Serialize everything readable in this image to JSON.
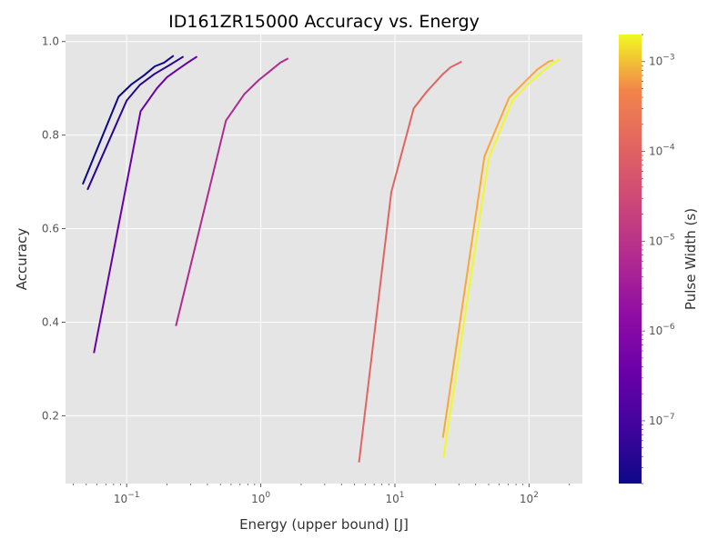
{
  "chart_data": {
    "type": "line",
    "title": "ID161ZR15000 Accuracy vs. Energy",
    "xlabel": "Energy (upper bound) [J]",
    "ylabel": "Accuracy",
    "x_scale": "log",
    "xlim": [
      0.035,
      250
    ],
    "ylim": [
      0.055,
      1.015
    ],
    "x_ticks": [
      {
        "value": 0.1,
        "base": "10",
        "exp": "−1"
      },
      {
        "value": 1,
        "base": "10",
        "exp": "0"
      },
      {
        "value": 10,
        "base": "10",
        "exp": "1"
      },
      {
        "value": 100,
        "base": "10",
        "exp": "2"
      }
    ],
    "y_ticks": [
      {
        "value": 0.2,
        "label": "0.2"
      },
      {
        "value": 0.4,
        "label": "0.4"
      },
      {
        "value": 0.6,
        "label": "0.6"
      },
      {
        "value": 0.8,
        "label": "0.8"
      },
      {
        "value": 1.0,
        "label": "1.0"
      }
    ],
    "grid": true,
    "colorbar": {
      "label": "Pulse Width (s)",
      "scale": "log",
      "colormap": "plasma",
      "range": [
        2e-08,
        0.002
      ],
      "ticks": [
        {
          "value": 1e-07,
          "base": "10",
          "exp": "−7"
        },
        {
          "value": 1e-06,
          "base": "10",
          "exp": "−6"
        },
        {
          "value": 1e-05,
          "base": "10",
          "exp": "−5"
        },
        {
          "value": 0.0001,
          "base": "10",
          "exp": "−4"
        },
        {
          "value": 0.001,
          "base": "10",
          "exp": "−3"
        }
      ]
    },
    "series": [
      {
        "color": "#0d0887",
        "x": [
          0.047,
          0.087,
          0.108,
          0.135,
          0.162,
          0.19,
          0.224
        ],
        "y": [
          0.695,
          0.882,
          0.908,
          0.928,
          0.947,
          0.955,
          0.97
        ]
      },
      {
        "color": "#2a0593",
        "x": [
          0.051,
          0.1,
          0.125,
          0.16,
          0.21,
          0.265
        ],
        "y": [
          0.683,
          0.874,
          0.907,
          0.93,
          0.95,
          0.968
        ]
      },
      {
        "color": "#6a00a8",
        "x": [
          0.057,
          0.127,
          0.168,
          0.2,
          0.245,
          0.285,
          0.335
        ],
        "y": [
          0.334,
          0.851,
          0.9,
          0.924,
          0.942,
          0.955,
          0.968
        ]
      },
      {
        "color": "#b12a90",
        "x": [
          0.233,
          0.55,
          0.75,
          0.97,
          1.15,
          1.4,
          1.6
        ],
        "y": [
          0.392,
          0.831,
          0.887,
          0.918,
          0.935,
          0.955,
          0.964
        ]
      },
      {
        "color": "#e16462",
        "x": [
          5.4,
          9.4,
          13.8,
          17.3,
          22.5,
          26.0,
          31.5
        ],
        "y": [
          0.1,
          0.678,
          0.857,
          0.893,
          0.929,
          0.945,
          0.957
        ]
      },
      {
        "color": "#fca636",
        "x": [
          22.8,
          46.5,
          71.0,
          96.0,
          115.0,
          140.0,
          152.0
        ],
        "y": [
          0.153,
          0.754,
          0.88,
          0.918,
          0.94,
          0.957,
          0.96
        ]
      },
      {
        "color": "#f0f921",
        "x": [
          23.0,
          50.0,
          75.0,
          100.0,
          125.0,
          150.0,
          170.0
        ],
        "y": [
          0.11,
          0.75,
          0.874,
          0.911,
          0.935,
          0.953,
          0.962
        ]
      }
    ]
  }
}
